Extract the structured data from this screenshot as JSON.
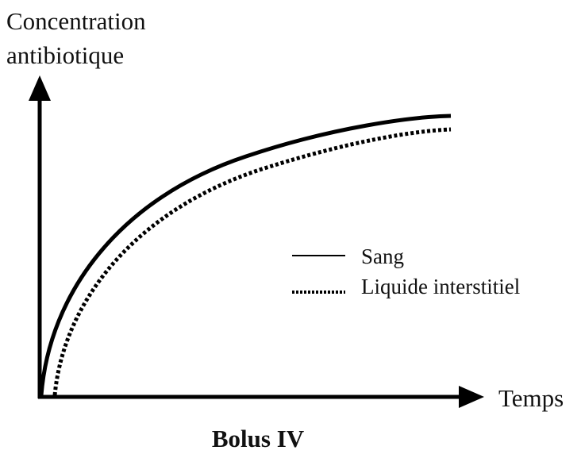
{
  "axes": {
    "y_label": [
      "Concentration",
      "antibiotique"
    ],
    "x_label": "Temps"
  },
  "legend": [
    {
      "label": "Sang"
    },
    {
      "label": "Liquide interstitiel"
    }
  ],
  "caption": "Bolus IV"
}
